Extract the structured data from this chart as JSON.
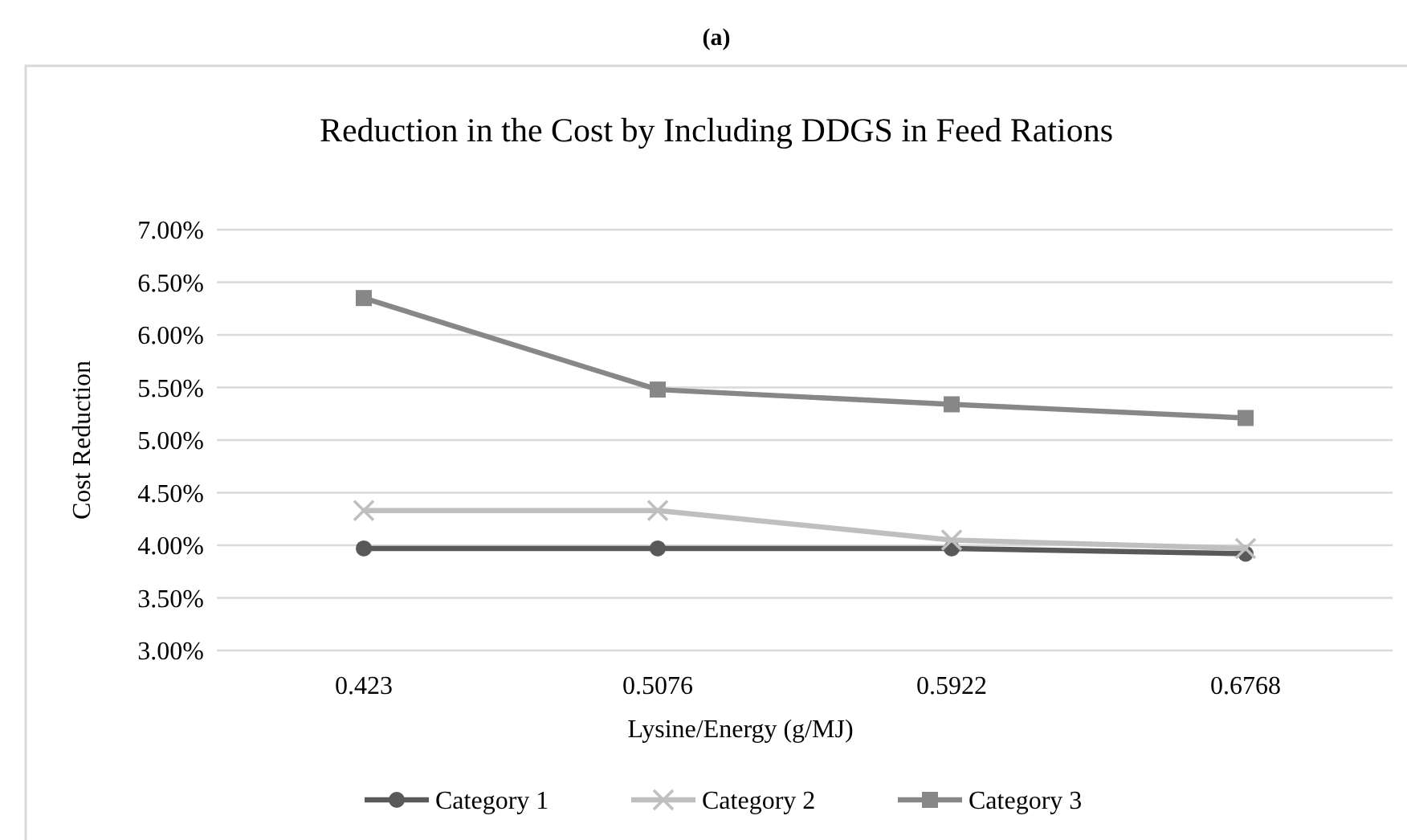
{
  "chart_data": {
    "type": "line",
    "title": "Reduction in the Cost by Including DDGS in Feed Rations",
    "xlabel": "Lysine/Energy (g/MJ)",
    "ylabel": "Cost Reduction",
    "annotations": [
      "(a)"
    ],
    "categories": [
      "0.423",
      "0.5076",
      "0.5922",
      "0.6768"
    ],
    "series": [
      {
        "name": "Category 1",
        "color": "#595959",
        "marker": "circle",
        "values": [
          3.97,
          3.97,
          3.97,
          3.92
        ]
      },
      {
        "name": "Category 2",
        "color": "#bfbfbf",
        "marker": "cross",
        "values": [
          4.33,
          4.33,
          4.05,
          3.97
        ]
      },
      {
        "name": "Category 3",
        "color": "#878787",
        "marker": "square",
        "values": [
          6.35,
          5.48,
          5.34,
          5.21
        ]
      }
    ],
    "ylim": [
      3,
      7
    ],
    "yticks": [
      {
        "value": 3,
        "label": "3.00%"
      },
      {
        "value": 3.5,
        "label": "3.50%"
      },
      {
        "value": 4,
        "label": "4.00%"
      },
      {
        "value": 4.5,
        "label": "4.50%"
      },
      {
        "value": 5,
        "label": "5.00%"
      },
      {
        "value": 5.5,
        "label": "5.50%"
      },
      {
        "value": 6,
        "label": "6.00%"
      },
      {
        "value": 6.5,
        "label": "6.50%"
      },
      {
        "value": 7,
        "label": "7.00%"
      }
    ],
    "grid": "y",
    "legend": "bottom"
  }
}
